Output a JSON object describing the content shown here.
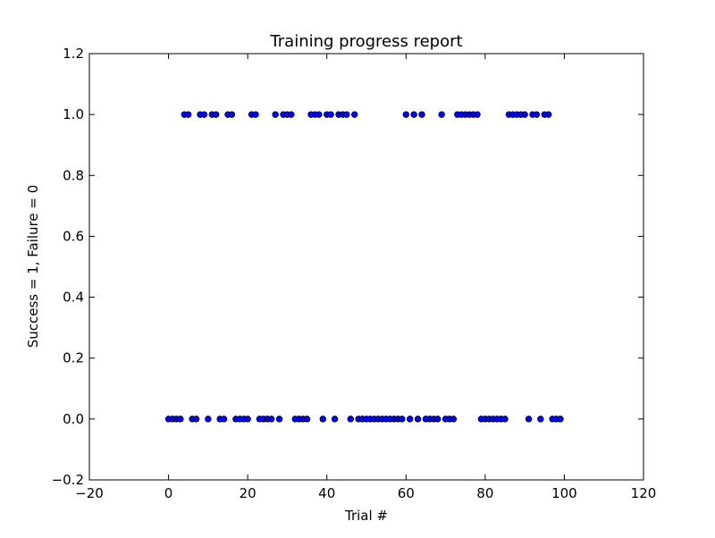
{
  "chart_data": {
    "type": "scatter",
    "title": "Training progress report",
    "xlabel": "Trial #",
    "ylabel": "Success = 1, Failure = 0",
    "xlim": [
      -20,
      120
    ],
    "ylim": [
      -0.2,
      1.2
    ],
    "xticks": [
      "−20",
      "0",
      "20",
      "40",
      "60",
      "80",
      "100",
      "120"
    ],
    "xtick_values": [
      -20,
      0,
      20,
      40,
      60,
      80,
      100,
      120
    ],
    "yticks": [
      "−0.2",
      "0.0",
      "0.2",
      "0.4",
      "0.6",
      "0.8",
      "1.0",
      "1.2"
    ],
    "ytick_values": [
      -0.2,
      0.0,
      0.2,
      0.4,
      0.6,
      0.8,
      1.0,
      1.2
    ],
    "grid": false,
    "marker_color": "#0000ff",
    "marker_edge_color": "#000000",
    "x": [
      0,
      1,
      2,
      3,
      4,
      5,
      6,
      7,
      8,
      9,
      10,
      11,
      12,
      13,
      14,
      15,
      16,
      17,
      18,
      19,
      20,
      21,
      22,
      23,
      24,
      25,
      26,
      27,
      28,
      29,
      30,
      31,
      32,
      33,
      34,
      35,
      36,
      37,
      38,
      39,
      40,
      41,
      42,
      43,
      44,
      45,
      46,
      47,
      48,
      49,
      50,
      51,
      52,
      53,
      54,
      55,
      56,
      57,
      58,
      59,
      60,
      61,
      62,
      63,
      64,
      65,
      66,
      67,
      68,
      69,
      70,
      71,
      72,
      73,
      74,
      75,
      76,
      77,
      78,
      79,
      80,
      81,
      82,
      83,
      84,
      85,
      86,
      87,
      88,
      89,
      90,
      91,
      92,
      93,
      94,
      95,
      96,
      97,
      98,
      99
    ],
    "y": [
      0,
      0,
      0,
      0,
      1,
      1,
      0,
      0,
      1,
      1,
      0,
      1,
      1,
      0,
      0,
      1,
      1,
      0,
      0,
      0,
      0,
      1,
      1,
      0,
      0,
      0,
      0,
      1,
      0,
      1,
      1,
      1,
      0,
      0,
      0,
      0,
      1,
      1,
      1,
      0,
      1,
      1,
      0,
      1,
      1,
      1,
      0,
      1,
      0,
      0,
      0,
      0,
      0,
      0,
      0,
      0,
      0,
      0,
      0,
      0,
      1,
      0,
      1,
      0,
      1,
      0,
      0,
      0,
      0,
      1,
      0,
      0,
      0,
      1,
      1,
      1,
      1,
      1,
      1,
      0,
      0,
      0,
      0,
      0,
      0,
      0,
      1,
      1,
      1,
      1,
      1,
      0,
      1,
      1,
      0,
      1,
      1,
      0,
      0,
      0
    ]
  }
}
